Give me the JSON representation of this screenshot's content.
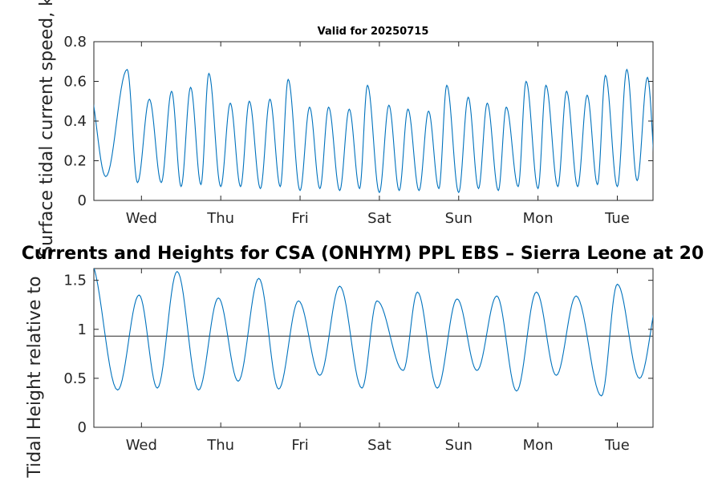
{
  "chart_data": [
    {
      "type": "line",
      "title": "Valid for 20250715",
      "ylabel": "Surface tidal current speed, kn",
      "xlabel": "",
      "ylim": [
        0,
        0.8
      ],
      "yticks": [
        "0",
        "0.2",
        "0.4",
        "0.6",
        "0.8"
      ],
      "xticks": [
        "Wed",
        "Thu",
        "Fri",
        "Sat",
        "Sun",
        "Mon",
        "Tue"
      ],
      "xlim_days": [
        -0.6,
        6.45
      ],
      "grid": false,
      "series": [
        {
          "color": "#0072bd",
          "peaks": [
            {
              "t": -0.67,
              "v": 0.58
            },
            {
              "t": -0.18,
              "v": 0.66
            },
            {
              "t": 0.1,
              "v": 0.51
            },
            {
              "t": 0.38,
              "v": 0.55
            },
            {
              "t": 0.62,
              "v": 0.57
            },
            {
              "t": 0.85,
              "v": 0.64
            },
            {
              "t": 1.12,
              "v": 0.49
            },
            {
              "t": 1.36,
              "v": 0.5
            },
            {
              "t": 1.62,
              "v": 0.51
            },
            {
              "t": 1.85,
              "v": 0.61
            },
            {
              "t": 2.12,
              "v": 0.47
            },
            {
              "t": 2.36,
              "v": 0.47
            },
            {
              "t": 2.62,
              "v": 0.46
            },
            {
              "t": 2.85,
              "v": 0.58
            },
            {
              "t": 3.12,
              "v": 0.48
            },
            {
              "t": 3.36,
              "v": 0.46
            },
            {
              "t": 3.62,
              "v": 0.45
            },
            {
              "t": 3.85,
              "v": 0.58
            },
            {
              "t": 4.12,
              "v": 0.52
            },
            {
              "t": 4.36,
              "v": 0.49
            },
            {
              "t": 4.6,
              "v": 0.47
            },
            {
              "t": 4.85,
              "v": 0.6
            },
            {
              "t": 5.1,
              "v": 0.58
            },
            {
              "t": 5.36,
              "v": 0.55
            },
            {
              "t": 5.62,
              "v": 0.53
            },
            {
              "t": 5.85,
              "v": 0.63
            },
            {
              "t": 6.12,
              "v": 0.66
            },
            {
              "t": 6.38,
              "v": 0.62
            },
            {
              "t": 6.62,
              "v": 0.6
            }
          ],
          "troughs": [
            {
              "t": -0.45,
              "v": 0.12
            },
            {
              "t": -0.05,
              "v": 0.09
            },
            {
              "t": 0.25,
              "v": 0.09
            },
            {
              "t": 0.5,
              "v": 0.07
            },
            {
              "t": 0.75,
              "v": 0.08
            },
            {
              "t": 1.0,
              "v": 0.07
            },
            {
              "t": 1.25,
              "v": 0.07
            },
            {
              "t": 1.5,
              "v": 0.06
            },
            {
              "t": 1.75,
              "v": 0.07
            },
            {
              "t": 2.0,
              "v": 0.05
            },
            {
              "t": 2.25,
              "v": 0.06
            },
            {
              "t": 2.5,
              "v": 0.05
            },
            {
              "t": 2.75,
              "v": 0.06
            },
            {
              "t": 3.0,
              "v": 0.04
            },
            {
              "t": 3.25,
              "v": 0.05
            },
            {
              "t": 3.5,
              "v": 0.05
            },
            {
              "t": 3.75,
              "v": 0.06
            },
            {
              "t": 4.0,
              "v": 0.04
            },
            {
              "t": 4.25,
              "v": 0.06
            },
            {
              "t": 4.5,
              "v": 0.05
            },
            {
              "t": 4.75,
              "v": 0.07
            },
            {
              "t": 5.0,
              "v": 0.06
            },
            {
              "t": 5.25,
              "v": 0.07
            },
            {
              "t": 5.5,
              "v": 0.07
            },
            {
              "t": 5.75,
              "v": 0.08
            },
            {
              "t": 6.0,
              "v": 0.07
            },
            {
              "t": 6.25,
              "v": 0.1
            },
            {
              "t": 6.5,
              "v": 0.08
            }
          ]
        }
      ]
    },
    {
      "type": "line",
      "title": "Currents and Heights for CSA (ONHYM) PPL EBS  – Sierra Leone at 20",
      "ylabel": "Tidal Height relative to",
      "xlabel": "",
      "ylim": [
        0,
        1.62
      ],
      "yticks": [
        "0",
        "0.5",
        "1",
        "1.5"
      ],
      "xticks": [
        "Wed",
        "Thu",
        "Fri",
        "Sat",
        "Sun",
        "Mon",
        "Tue"
      ],
      "xlim_days": [
        -0.6,
        6.45
      ],
      "grid": false,
      "reference_line": 0.93,
      "series": [
        {
          "color": "#0072bd",
          "peaks": [
            {
              "t": -0.65,
              "v": 1.7
            },
            {
              "t": -0.03,
              "v": 1.35
            },
            {
              "t": 0.45,
              "v": 1.59
            },
            {
              "t": 0.97,
              "v": 1.32
            },
            {
              "t": 1.48,
              "v": 1.52
            },
            {
              "t": 1.98,
              "v": 1.29
            },
            {
              "t": 2.5,
              "v": 1.44
            },
            {
              "t": 2.97,
              "v": 1.29
            },
            {
              "t": 3.48,
              "v": 1.38
            },
            {
              "t": 3.98,
              "v": 1.31
            },
            {
              "t": 4.48,
              "v": 1.34
            },
            {
              "t": 4.98,
              "v": 1.38
            },
            {
              "t": 5.48,
              "v": 1.34
            },
            {
              "t": 6.0,
              "v": 1.46
            },
            {
              "t": 6.55,
              "v": 1.4
            }
          ],
          "troughs": [
            {
              "t": -0.3,
              "v": 0.38
            },
            {
              "t": 0.2,
              "v": 0.4
            },
            {
              "t": 0.72,
              "v": 0.38
            },
            {
              "t": 1.22,
              "v": 0.47
            },
            {
              "t": 1.73,
              "v": 0.39
            },
            {
              "t": 2.25,
              "v": 0.53
            },
            {
              "t": 2.78,
              "v": 0.4
            },
            {
              "t": 3.3,
              "v": 0.58
            },
            {
              "t": 3.73,
              "v": 0.4
            },
            {
              "t": 4.23,
              "v": 0.58
            },
            {
              "t": 4.73,
              "v": 0.37
            },
            {
              "t": 5.23,
              "v": 0.53
            },
            {
              "t": 5.8,
              "v": 0.32
            },
            {
              "t": 6.28,
              "v": 0.5
            }
          ]
        }
      ]
    }
  ]
}
